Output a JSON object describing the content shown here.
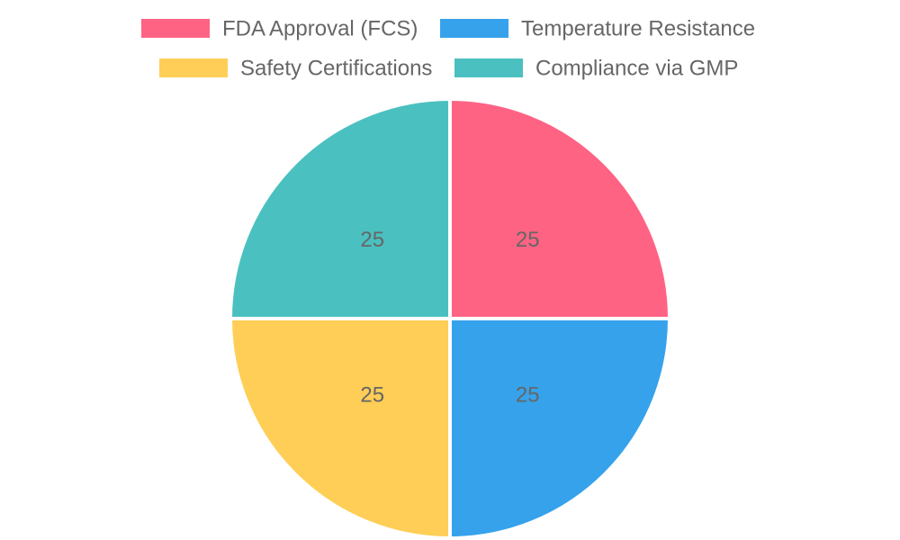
{
  "chart_data": {
    "type": "pie",
    "categories": [
      "FDA Approval (FCS)",
      "Temperature Resistance",
      "Safety Certifications",
      "Compliance via GMP"
    ],
    "values": [
      25,
      25,
      25,
      25
    ],
    "colors": [
      "#ff6384",
      "#36a2eb",
      "#ffce56",
      "#4bc0c0"
    ],
    "legend_position": "top",
    "data_labels": true
  }
}
